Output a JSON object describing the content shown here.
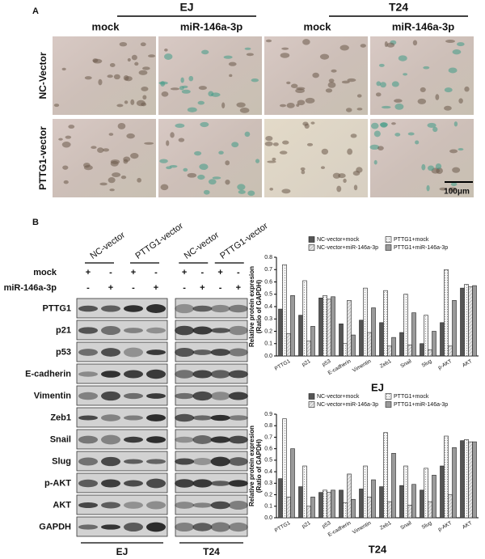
{
  "panel_a": {
    "label": "A",
    "groups": [
      "EJ",
      "T24"
    ],
    "columns": [
      "mock",
      "miR-146a-3p",
      "mock",
      "miR-146a-3p"
    ],
    "rows": [
      "NC-Vector",
      "PTTG1-vector"
    ],
    "scale_bar": "100μm"
  },
  "panel_b": {
    "label": "B",
    "lanes": [
      "NC-vector",
      "PTTG1-vector",
      "NC-vector",
      "PTTG1-vector"
    ],
    "treatments": [
      {
        "label": "mock",
        "signs": [
          "+",
          "-",
          "+",
          "-",
          "+",
          "-",
          "+",
          "-"
        ]
      },
      {
        "label": "miR-146a-3p",
        "signs": [
          "-",
          "+",
          "-",
          "+",
          "-",
          "+",
          "-",
          "+"
        ]
      }
    ],
    "proteins": [
      "PTTG1",
      "p21",
      "p53",
      "E-cadherin",
      "Vimentin",
      "Zeb1",
      "Snail",
      "Slug",
      "p-AKT",
      "AKT",
      "GAPDH"
    ],
    "cells": [
      "EJ",
      "T24"
    ]
  },
  "chart_data": [
    {
      "type": "bar",
      "xlabel": "EJ",
      "ylabel_lines": [
        "Relative protein expresion",
        "(Ratio of GAPDH)"
      ],
      "categories": [
        "PTTG1",
        "p21",
        "p53",
        "E-cadherin",
        "Vimentin",
        "Zeb1",
        "Snail",
        "Slug",
        "p-AKT",
        "AKT"
      ],
      "series": [
        {
          "name": "NC-vector+mock",
          "color": "#555555",
          "values": [
            0.38,
            0.33,
            0.47,
            0.26,
            0.29,
            0.27,
            0.19,
            0.1,
            0.27,
            0.55
          ]
        },
        {
          "name": "PTTG1+mock",
          "color": "#f4f4f4",
          "values": [
            0.74,
            0.61,
            0.49,
            0.1,
            0.55,
            0.53,
            0.5,
            0.33,
            0.7,
            0.58
          ]
        },
        {
          "name": "NC-vector+miR-146a-3p",
          "color": "#d6d6d6",
          "values": [
            0.18,
            0.12,
            0.46,
            0.45,
            0.19,
            0.08,
            0.09,
            0.05,
            0.08,
            0.56
          ]
        },
        {
          "name": "PTTG1+miR-146a-3p",
          "color": "#9a9a9a",
          "values": [
            0.49,
            0.24,
            0.48,
            0.17,
            0.39,
            0.15,
            0.35,
            0.2,
            0.45,
            0.57
          ]
        }
      ],
      "ylim": [
        0,
        0.8
      ],
      "yticks": [
        {
          "value": 0,
          "label": "0.0"
        },
        0.1,
        0.2,
        0.3,
        0.4,
        0.5,
        0.6,
        0.7,
        0.8
      ]
    },
    {
      "type": "bar",
      "xlabel": "T24",
      "ylabel_lines": [
        "Relative protein expresion",
        "(Ratio of GAPDH)"
      ],
      "categories": [
        "PTTG1",
        "p21",
        "p53",
        "E-cadherin",
        "Vimentin",
        "Zeb1",
        "Snail",
        "Slug",
        "p-AKT",
        "AKT"
      ],
      "series": [
        {
          "name": "NC-vector+mock",
          "color": "#555555",
          "values": [
            0.34,
            0.27,
            0.22,
            0.24,
            0.25,
            0.27,
            0.28,
            0.24,
            0.45,
            0.67
          ]
        },
        {
          "name": "PTTG1+mock",
          "color": "#f4f4f4",
          "values": [
            0.86,
            0.45,
            0.24,
            0.13,
            0.45,
            0.74,
            0.45,
            0.43,
            0.71,
            0.68
          ]
        },
        {
          "name": "NC-vector+miR-146a-3p",
          "color": "#d6d6d6",
          "values": [
            0.18,
            0.1,
            0.22,
            0.38,
            0.18,
            0.14,
            0.11,
            0.14,
            0.2,
            0.66
          ]
        },
        {
          "name": "PTTG1+miR-146a-3p",
          "color": "#9a9a9a",
          "values": [
            0.6,
            0.18,
            0.24,
            0.16,
            0.33,
            0.56,
            0.29,
            0.37,
            0.61,
            0.66
          ]
        }
      ],
      "ylim": [
        0,
        0.9
      ],
      "yticks": [
        {
          "value": 0,
          "label": "0.0"
        },
        0.1,
        0.2,
        0.3,
        0.4,
        0.5,
        0.6,
        0.7,
        0.8,
        0.9
      ]
    }
  ]
}
